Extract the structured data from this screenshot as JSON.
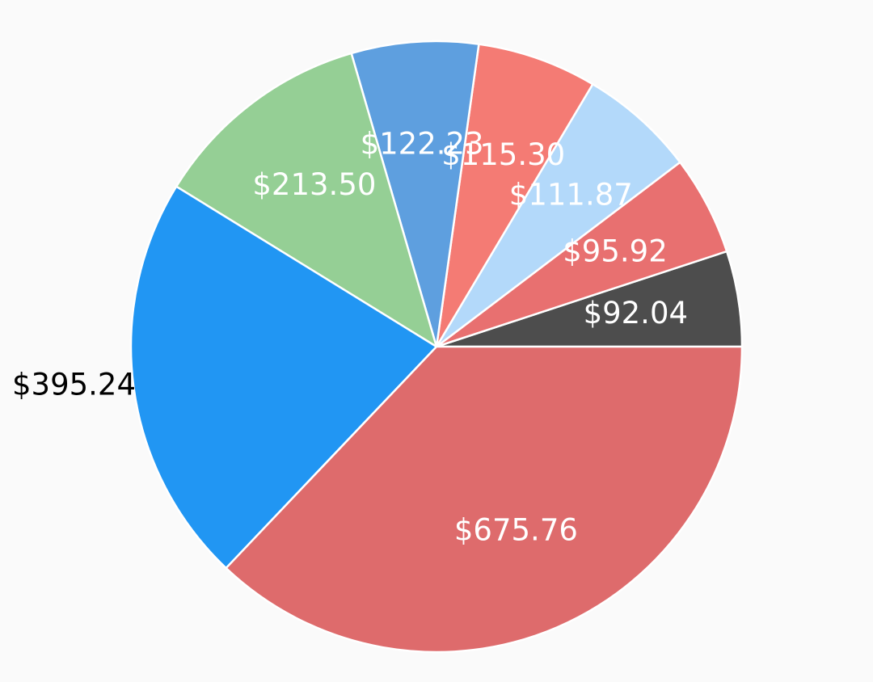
{
  "chart_data": {
    "type": "pie",
    "title": "",
    "start_angle_deg": 0,
    "direction": "counter-clockwise-from-3-oclock",
    "slices": [
      {
        "label": "$92.04",
        "value": 92.04,
        "color": "#4d4d4d",
        "label_color": "#ffffff"
      },
      {
        "label": "$95.92",
        "value": 95.92,
        "color": "#e87070",
        "label_color": "#ffffff"
      },
      {
        "label": "$111.87",
        "value": 111.87,
        "color": "#b3d9fa",
        "label_color": "#ffffff"
      },
      {
        "label": "$115.30",
        "value": 115.3,
        "color": "#f47b74",
        "label_color": "#ffffff"
      },
      {
        "label": "$122.23",
        "value": 122.23,
        "color": "#5e9fdf",
        "label_color": "#ffffff"
      },
      {
        "label": "$213.50",
        "value": 213.5,
        "color": "#95cf95",
        "label_color": "#ffffff"
      },
      {
        "label": "$395.24",
        "value": 395.24,
        "color": "#2196f3",
        "label_color": "#000000"
      },
      {
        "label": "$675.76",
        "value": 675.76,
        "color": "#de6b6c",
        "label_color": "#ffffff"
      }
    ]
  }
}
